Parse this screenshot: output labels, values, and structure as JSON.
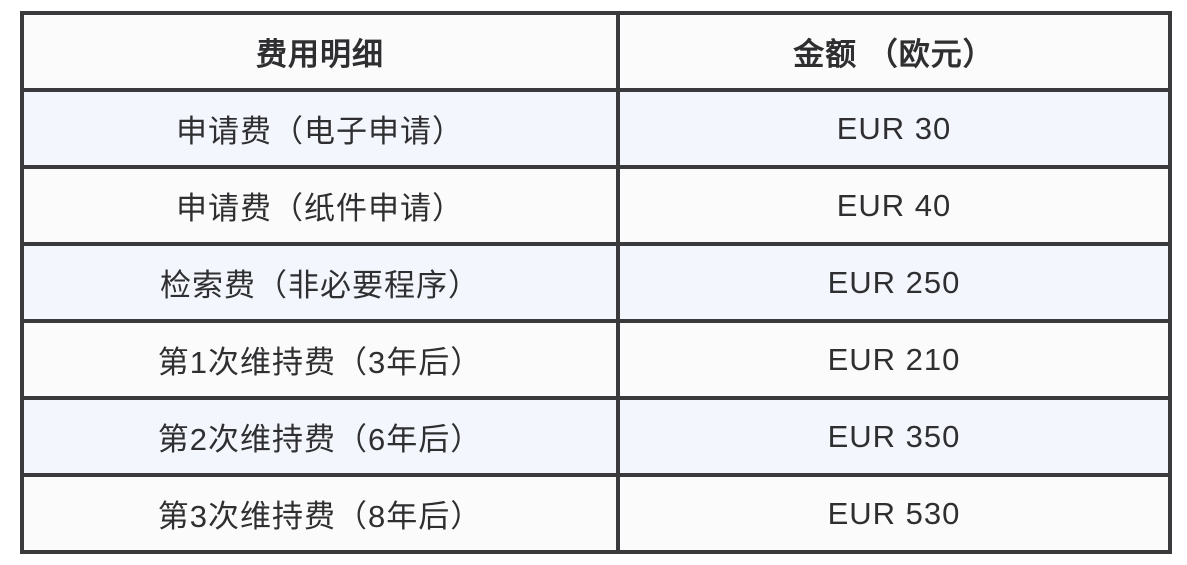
{
  "table": {
    "headers": {
      "item": "费用明细",
      "amount": "金额 （欧元）"
    },
    "rows": [
      {
        "item": "申请费（电子申请）",
        "amount": "EUR 30"
      },
      {
        "item": "申请费（纸件申请）",
        "amount": "EUR 40"
      },
      {
        "item": "检索费（非必要程序）",
        "amount": "EUR 250"
      },
      {
        "item": "第1次维持费（3年后）",
        "amount": "EUR 210"
      },
      {
        "item": "第2次维持费（6年后）",
        "amount": "EUR 350"
      },
      {
        "item": "第3次维持费（8年后）",
        "amount": "EUR 530"
      }
    ],
    "colors": {
      "border": "#3a3a3c",
      "row_plain_bg": "#fbfbfc",
      "row_alt_bg": "#f3f7fd",
      "text": "#2f2f31"
    }
  }
}
